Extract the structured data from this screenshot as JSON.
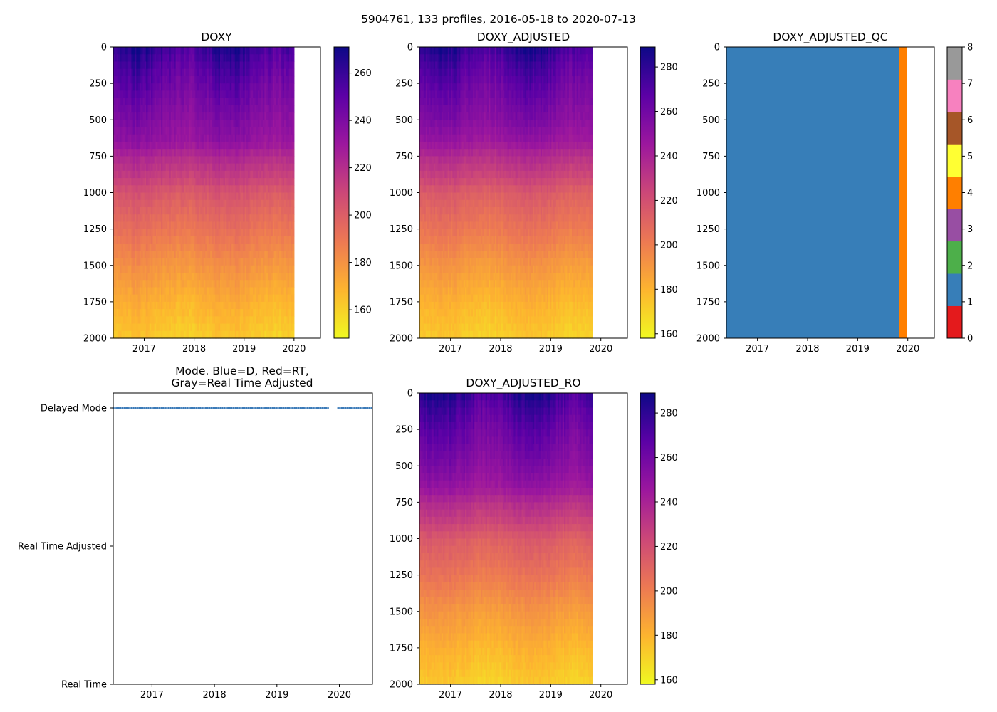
{
  "suptitle": "5904761, 133 profiles, 2016-05-18 to 2020-07-13",
  "colors": {
    "mode_blue": "#3a7ab8",
    "qc_good": "#377eb8",
    "qc_bad": "#ff7f00",
    "plasma_stops": [
      "#f0f921",
      "#fdb42f",
      "#ed7953",
      "#cc4778",
      "#9c179e",
      "#5c01a6",
      "#0d0887"
    ]
  },
  "chart_data": [
    {
      "id": "doxy",
      "type": "heatmap",
      "title": "DOXY",
      "colormap": "plasma",
      "x_range": [
        2016.38,
        2020.53
      ],
      "x_ticks": [
        2017,
        2018,
        2019,
        2020
      ],
      "x_tick_labels": [
        "2017",
        "2018",
        "2019",
        "2020"
      ],
      "y_range": [
        2000,
        0
      ],
      "y_ticks": [
        0,
        250,
        500,
        750,
        1000,
        1250,
        1500,
        1750,
        2000
      ],
      "y_tick_labels": [
        "0",
        "250",
        "500",
        "750",
        "1000",
        "1250",
        "1500",
        "1750",
        "2000"
      ],
      "data_x_end": 2020.0,
      "clim": [
        148,
        271
      ],
      "colorbar_ticks": [
        160,
        180,
        200,
        220,
        240,
        260
      ],
      "colorbar_tick_labels": [
        "160",
        "180",
        "200",
        "220",
        "240",
        "260"
      ],
      "depth_profile": [
        [
          0,
          262
        ],
        [
          100,
          255
        ],
        [
          250,
          248
        ],
        [
          400,
          242
        ],
        [
          500,
          238
        ],
        [
          650,
          233
        ],
        [
          750,
          222
        ],
        [
          900,
          212
        ],
        [
          1000,
          203
        ],
        [
          1250,
          192
        ],
        [
          1500,
          180
        ],
        [
          1750,
          170
        ],
        [
          2000,
          162
        ]
      ]
    },
    {
      "id": "doxy-adjusted",
      "type": "heatmap",
      "title": "DOXY_ADJUSTED",
      "colormap": "plasma",
      "x_range": [
        2016.38,
        2020.53
      ],
      "x_ticks": [
        2017,
        2018,
        2019,
        2020
      ],
      "x_tick_labels": [
        "2017",
        "2018",
        "2019",
        "2020"
      ],
      "y_range": [
        2000,
        0
      ],
      "y_ticks": [
        0,
        250,
        500,
        750,
        1000,
        1250,
        1500,
        1750,
        2000
      ],
      "y_tick_labels": [
        "0",
        "250",
        "500",
        "750",
        "1000",
        "1250",
        "1500",
        "1750",
        "2000"
      ],
      "data_x_end": 2019.83,
      "clim": [
        158,
        289
      ],
      "colorbar_ticks": [
        160,
        180,
        200,
        220,
        240,
        260,
        280
      ],
      "colorbar_tick_labels": [
        "160",
        "180",
        "200",
        "220",
        "240",
        "260",
        "280"
      ],
      "depth_profile": [
        [
          0,
          280
        ],
        [
          100,
          272
        ],
        [
          250,
          264
        ],
        [
          400,
          258
        ],
        [
          500,
          254
        ],
        [
          650,
          246
        ],
        [
          750,
          235
        ],
        [
          900,
          224
        ],
        [
          1000,
          214
        ],
        [
          1250,
          203
        ],
        [
          1500,
          190
        ],
        [
          1750,
          180
        ],
        [
          2000,
          172
        ]
      ]
    },
    {
      "id": "doxy-adjusted-qc",
      "type": "heatmap",
      "title": "DOXY_ADJUSTED_QC",
      "colormap": "qc",
      "x_range": [
        2016.38,
        2020.53
      ],
      "x_ticks": [
        2017,
        2018,
        2019,
        2020
      ],
      "x_tick_labels": [
        "2017",
        "2018",
        "2019",
        "2020"
      ],
      "y_range": [
        2000,
        0
      ],
      "y_ticks": [
        0,
        250,
        500,
        750,
        1000,
        1250,
        1500,
        1750,
        2000
      ],
      "y_tick_labels": [
        "0",
        "250",
        "500",
        "750",
        "1000",
        "1250",
        "1500",
        "1750",
        "2000"
      ],
      "qc_blocks": [
        {
          "x0": 2016.38,
          "x1": 2019.83,
          "qc": 1
        },
        {
          "x0": 2019.83,
          "x1": 2019.98,
          "qc": 4
        }
      ],
      "qc_colors": [
        "#e41a1c",
        "#377eb8",
        "#4daf4a",
        "#984ea3",
        "#ff7f00",
        "#ffff33",
        "#a65628",
        "#f781bf",
        "#999999"
      ],
      "colorbar_ticks": [
        0,
        1,
        2,
        3,
        4,
        5,
        6,
        7,
        8
      ],
      "colorbar_tick_labels": [
        "0",
        "1",
        "2",
        "3",
        "4",
        "5",
        "6",
        "7",
        "8"
      ]
    },
    {
      "id": "mode",
      "type": "scatter",
      "title_lines": [
        "Mode. Blue=D, Red=RT,",
        "Gray=Real Time Adjusted"
      ],
      "x_range": [
        2016.38,
        2020.53
      ],
      "x_ticks": [
        2017,
        2018,
        2019,
        2020
      ],
      "x_tick_labels": [
        "2017",
        "2018",
        "2019",
        "2020"
      ],
      "y_categories": [
        "Delayed Mode",
        "Real Time Adjusted",
        "Real Time"
      ],
      "series": [
        {
          "name": "Delayed Mode",
          "segments": [
            [
              2016.38,
              2019.83
            ],
            [
              2019.98,
              2020.53
            ]
          ]
        }
      ]
    },
    {
      "id": "doxy-adjusted-ro",
      "type": "heatmap",
      "title": "DOXY_ADJUSTED_RO",
      "colormap": "plasma",
      "x_range": [
        2016.38,
        2020.53
      ],
      "x_ticks": [
        2017,
        2018,
        2019,
        2020
      ],
      "x_tick_labels": [
        "2017",
        "2018",
        "2019",
        "2020"
      ],
      "y_range": [
        2000,
        0
      ],
      "y_ticks": [
        0,
        250,
        500,
        750,
        1000,
        1250,
        1500,
        1750,
        2000
      ],
      "y_tick_labels": [
        "0",
        "250",
        "500",
        "750",
        "1000",
        "1250",
        "1500",
        "1750",
        "2000"
      ],
      "data_x_end": 2019.83,
      "clim": [
        158,
        289
      ],
      "colorbar_ticks": [
        160,
        180,
        200,
        220,
        240,
        260,
        280
      ],
      "colorbar_tick_labels": [
        "160",
        "180",
        "200",
        "220",
        "240",
        "260",
        "280"
      ],
      "depth_profile": [
        [
          0,
          280
        ],
        [
          100,
          272
        ],
        [
          250,
          264
        ],
        [
          400,
          258
        ],
        [
          500,
          254
        ],
        [
          650,
          246
        ],
        [
          750,
          235
        ],
        [
          900,
          224
        ],
        [
          1000,
          214
        ],
        [
          1250,
          203
        ],
        [
          1500,
          190
        ],
        [
          1750,
          180
        ],
        [
          2000,
          172
        ]
      ]
    }
  ]
}
